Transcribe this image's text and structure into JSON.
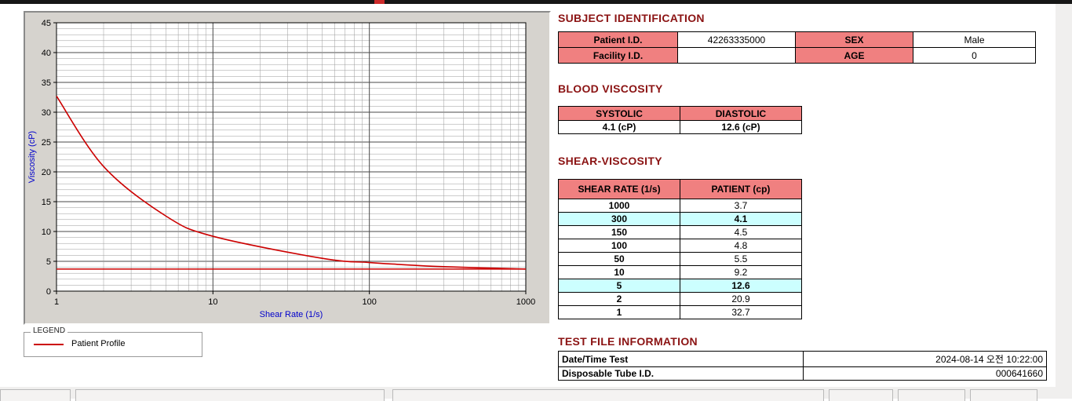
{
  "colors": {
    "section_title": "#8b1313",
    "table_header_bg": "#f08080",
    "highlight_bg": "#ccffff",
    "series_color": "#cc0000",
    "axis_label_color": "#0000cc"
  },
  "chart_data": {
    "type": "line",
    "x_scale": "log",
    "xlabel": "Shear Rate (1/s)",
    "ylabel": "Viscosity (cP)",
    "xlim": [
      1,
      1000
    ],
    "ylim": [
      0,
      45
    ],
    "x_ticks": [
      1,
      10,
      100,
      1000
    ],
    "y_ticks": [
      0,
      5,
      10,
      15,
      20,
      25,
      30,
      35,
      40,
      45
    ],
    "grid": "log minor vertical gridlines, horizontal gridlines every 1 (major every 5)",
    "legend_position": "groupbox below chart",
    "series": [
      {
        "name": "Patient Profile",
        "color": "#cc0000",
        "smooth": true,
        "x": [
          1,
          2,
          5,
          10,
          50,
          100,
          150,
          300,
          1000
        ],
        "y": [
          32.7,
          20.9,
          12.6,
          9.2,
          5.5,
          4.8,
          4.5,
          4.1,
          3.7
        ]
      },
      {
        "name": "flat-reference-line",
        "color": "#cc0000",
        "smooth": false,
        "x": [
          1,
          1000
        ],
        "y": [
          3.7,
          3.7
        ]
      }
    ]
  },
  "legend": {
    "title": "LEGEND",
    "items": [
      {
        "label": "Patient Profile",
        "color": "#cc0000"
      }
    ]
  },
  "sections": {
    "subject_identification": {
      "title": "SUBJECT IDENTIFICATION",
      "rows": [
        {
          "label1": "Patient I.D.",
          "value1": "42263335000",
          "label2": "SEX",
          "value2": "Male"
        },
        {
          "label1": "Facility I.D.",
          "value1": "",
          "label2": "AGE",
          "value2": "0"
        }
      ]
    },
    "blood_viscosity": {
      "title": "BLOOD VISCOSITY",
      "headers": [
        "SYSTOLIC",
        "DIASTOLIC"
      ],
      "values": [
        "4.1 (cP)",
        "12.6 (cP)"
      ]
    },
    "shear_viscosity": {
      "title": "SHEAR-VISCOSITY",
      "headers": [
        "SHEAR RATE (1/s)",
        "PATIENT (cp)"
      ],
      "rows": [
        {
          "rate": "1000",
          "value": "3.7",
          "highlight": false
        },
        {
          "rate": "300",
          "value": "4.1",
          "highlight": true
        },
        {
          "rate": "150",
          "value": "4.5",
          "highlight": false
        },
        {
          "rate": "100",
          "value": "4.8",
          "highlight": false
        },
        {
          "rate": "50",
          "value": "5.5",
          "highlight": false
        },
        {
          "rate": "10",
          "value": "9.2",
          "highlight": false
        },
        {
          "rate": "5",
          "value": "12.6",
          "highlight": true
        },
        {
          "rate": "2",
          "value": "20.9",
          "highlight": false
        },
        {
          "rate": "1",
          "value": "32.7",
          "highlight": false
        }
      ]
    },
    "test_file_information": {
      "title": "TEST FILE INFORMATION",
      "rows": [
        {
          "label": "Date/Time Test",
          "value": "2024-08-14   오전 10:22:00"
        },
        {
          "label": "Disposable Tube I.D.",
          "value": "000641660"
        }
      ]
    }
  }
}
